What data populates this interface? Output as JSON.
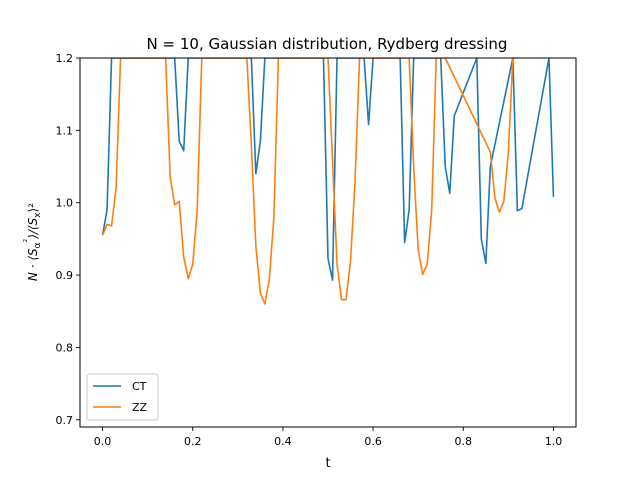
{
  "chart_data": {
    "type": "line",
    "title": "N = 10, Gaussian distribution, Rydberg dressing",
    "xlabel": "t",
    "ylabel": "N · ⟨S_α²⟩/⟨S_x⟩²",
    "xlim": [
      -0.05,
      1.05
    ],
    "ylim": [
      0.69,
      1.2
    ],
    "xticks": [
      0.0,
      0.2,
      0.4,
      0.6,
      0.8,
      1.0
    ],
    "xtick_labels": [
      "0.0",
      "0.2",
      "0.4",
      "0.6",
      "0.8",
      "1.0"
    ],
    "yticks": [
      0.7,
      0.8,
      0.9,
      1.0,
      1.1,
      1.2
    ],
    "ytick_labels": [
      "0.7",
      "0.8",
      "0.9",
      "1.0",
      "1.1",
      "1.2"
    ],
    "grid": false,
    "legend_position": "lower-left",
    "series": [
      {
        "name": "CT",
        "color": "#1f77b4",
        "x": [
          0.0,
          0.01,
          0.02,
          0.16,
          0.17,
          0.18,
          0.19,
          0.33,
          0.34,
          0.35,
          0.36,
          0.49,
          0.5,
          0.51,
          0.52,
          0.58,
          0.59,
          0.6,
          0.66,
          0.67,
          0.68,
          0.69,
          0.75,
          0.76,
          0.77,
          0.78,
          0.83,
          0.84,
          0.85,
          0.86,
          0.91,
          0.92,
          0.93,
          0.99,
          1.0
        ],
        "y": [
          0.955,
          0.99,
          1.2,
          1.2,
          1.085,
          1.072,
          1.2,
          1.2,
          1.04,
          1.085,
          1.2,
          1.2,
          0.923,
          0.893,
          1.2,
          1.2,
          1.108,
          1.2,
          1.2,
          0.945,
          0.99,
          1.2,
          1.2,
          1.05,
          1.013,
          1.12,
          1.2,
          0.95,
          0.916,
          1.05,
          1.2,
          0.989,
          0.992,
          1.2,
          1.008
        ]
      },
      {
        "name": "ZZ",
        "color": "#ff7f0e",
        "x": [
          0.0,
          0.01,
          0.02,
          0.03,
          0.04,
          0.14,
          0.15,
          0.16,
          0.17,
          0.18,
          0.19,
          0.2,
          0.21,
          0.22,
          0.32,
          0.33,
          0.34,
          0.35,
          0.36,
          0.37,
          0.38,
          0.39,
          0.4,
          0.5,
          0.51,
          0.52,
          0.53,
          0.54,
          0.55,
          0.56,
          0.57,
          0.68,
          0.69,
          0.7,
          0.71,
          0.72,
          0.73,
          0.74,
          0.75,
          0.76,
          0.86,
          0.87,
          0.88,
          0.89,
          0.9,
          0.91,
          0.92
        ],
        "y": [
          0.955,
          0.97,
          0.968,
          1.02,
          1.2,
          1.2,
          1.035,
          0.997,
          1.002,
          0.925,
          0.895,
          0.915,
          0.99,
          1.2,
          1.2,
          1.08,
          0.94,
          0.875,
          0.86,
          0.895,
          0.98,
          1.2,
          1.2,
          1.2,
          1.06,
          0.915,
          0.866,
          0.866,
          0.92,
          1.03,
          1.2,
          1.2,
          1.05,
          0.935,
          0.901,
          0.915,
          0.99,
          1.2,
          1.2,
          1.2,
          1.07,
          1.007,
          0.987,
          1.002,
          1.07,
          1.2,
          1.2
        ]
      }
    ]
  }
}
